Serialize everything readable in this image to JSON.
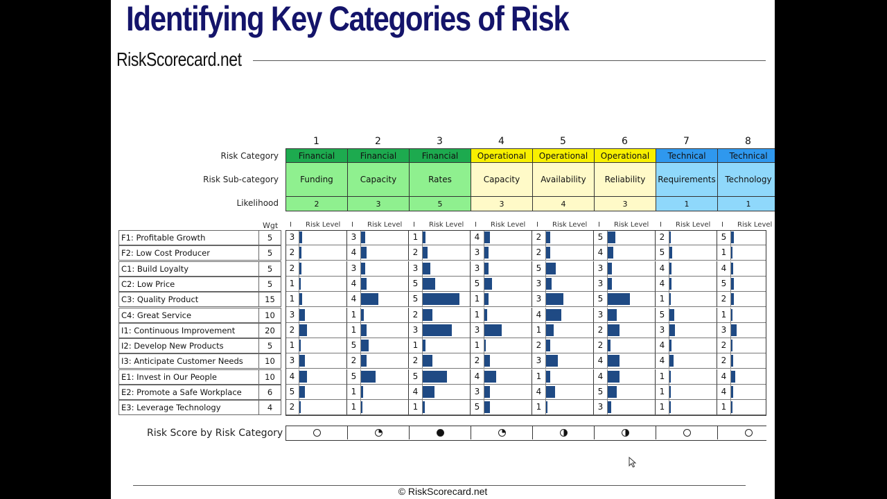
{
  "slide": {
    "title": "Identifying Key Categories of Risk",
    "brand": "RiskScorecard.net",
    "footer": "© RiskScorecard.net"
  },
  "header_labels": {
    "category": "Risk Category",
    "subcategory": "Risk Sub-category",
    "likelihood": "Likelihood",
    "wgt": "Wgt",
    "impact_abbr": "I",
    "risk_level": "Risk Level",
    "risk_score": "Risk Score by Risk Category"
  },
  "colors": {
    "financial_header": "#1daa4f",
    "financial_body": "#8ff08f",
    "operational_header": "#f8f000",
    "operational_body": "#fffac8",
    "technical_header": "#2f98ee",
    "technical_body": "#8fd8fb",
    "bar": "#1f4a84",
    "title": "#14146a"
  },
  "columns": [
    {
      "num": "1",
      "category": "Financial",
      "sub": "Funding",
      "likelihood": "2",
      "group": "financial",
      "score": "empty"
    },
    {
      "num": "2",
      "category": "Financial",
      "sub": "Capacity",
      "likelihood": "3",
      "group": "financial",
      "score": "quarter"
    },
    {
      "num": "3",
      "category": "Financial",
      "sub": "Rates",
      "likelihood": "5",
      "group": "financial",
      "score": "full"
    },
    {
      "num": "4",
      "category": "Operational",
      "sub": "Capacity",
      "likelihood": "3",
      "group": "operational",
      "score": "quarter"
    },
    {
      "num": "5",
      "category": "Operational",
      "sub": "Availability",
      "likelihood": "4",
      "group": "operational",
      "score": "half"
    },
    {
      "num": "6",
      "category": "Operational",
      "sub": "Reliability",
      "likelihood": "3",
      "group": "operational",
      "score": "half"
    },
    {
      "num": "7",
      "category": "Technical",
      "sub": "Requirements",
      "likelihood": "1",
      "group": "technical",
      "score": "empty"
    },
    {
      "num": "8",
      "category": "Technical",
      "sub": "Technology",
      "likelihood": "1",
      "group": "technical",
      "score": "empty"
    }
  ],
  "objectives": [
    {
      "name": "F1: Profitable Growth",
      "wgt": "5",
      "impacts": [
        3,
        3,
        1,
        4,
        2,
        5,
        2,
        5
      ]
    },
    {
      "name": "F2: Low Cost Producer",
      "wgt": "5",
      "impacts": [
        2,
        4,
        2,
        3,
        2,
        4,
        5,
        1
      ]
    },
    {
      "name": "C1: Build Loyalty",
      "wgt": "5",
      "impacts": [
        2,
        3,
        3,
        3,
        5,
        3,
        4,
        4
      ]
    },
    {
      "name": "C2: Low Price",
      "wgt": "5",
      "impacts": [
        1,
        4,
        5,
        5,
        3,
        3,
        4,
        5
      ]
    },
    {
      "name": "C3: Quality Product",
      "wgt": "15",
      "impacts": [
        1,
        4,
        5,
        1,
        3,
        5,
        1,
        2
      ]
    },
    {
      "name": "C4: Great Service",
      "wgt": "10",
      "impacts": [
        3,
        1,
        2,
        1,
        4,
        3,
        5,
        1
      ]
    },
    {
      "name": "I1: Continuous Improvement",
      "wgt": "20",
      "impacts": [
        2,
        1,
        3,
        3,
        1,
        2,
        3,
        3
      ]
    },
    {
      "name": "I2: Develop New Products",
      "wgt": "5",
      "impacts": [
        1,
        5,
        1,
        1,
        2,
        2,
        4,
        2
      ]
    },
    {
      "name": "I3: Anticipate Customer Needs",
      "wgt": "10",
      "impacts": [
        3,
        2,
        2,
        2,
        3,
        4,
        4,
        2
      ]
    },
    {
      "name": "E1: Invest in Our People",
      "wgt": "10",
      "impacts": [
        4,
        5,
        5,
        4,
        1,
        4,
        1,
        4
      ]
    },
    {
      "name": "E2: Promote a Safe Workplace",
      "wgt": "6",
      "impacts": [
        5,
        1,
        4,
        3,
        4,
        5,
        1,
        4
      ]
    },
    {
      "name": "E3: Leverage Technology",
      "wgt": "4",
      "impacts": [
        2,
        1,
        1,
        5,
        1,
        3,
        1,
        1
      ]
    }
  ]
}
